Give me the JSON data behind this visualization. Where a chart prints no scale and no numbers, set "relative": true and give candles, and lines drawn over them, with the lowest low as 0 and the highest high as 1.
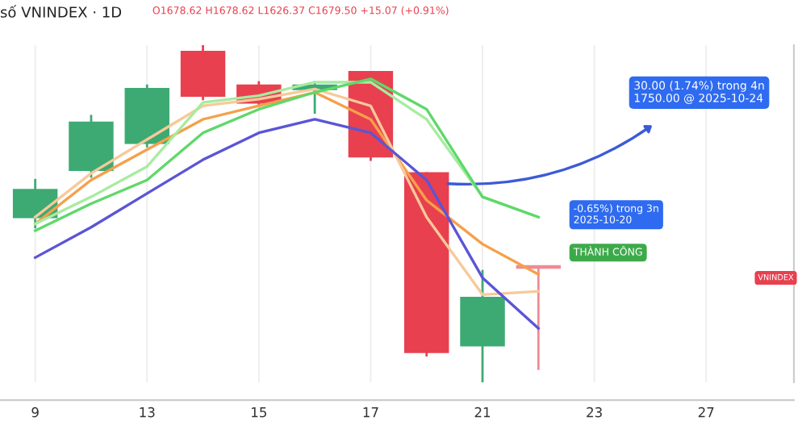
{
  "chart_data": {
    "type": "candlestick",
    "title": "số VNINDEX · 1D",
    "subtitle": "O1678.62 H1678.62 L1626.37 C1679.50 +15.07 (+0.91%)",
    "relative": true,
    "grid": true,
    "legend": false,
    "categories": [
      "9",
      null,
      "13",
      null,
      "15",
      null,
      "17",
      null,
      "21",
      null,
      "23",
      null,
      "27",
      null
    ],
    "ohlc": [
      [
        0.49,
        0.6,
        0.46,
        0.57
      ],
      [
        0.63,
        0.79,
        0.61,
        0.77
      ],
      [
        0.71,
        0.88,
        0.7,
        0.87
      ],
      [
        0.98,
        1.0,
        0.84,
        0.85
      ],
      [
        0.88,
        0.89,
        0.82,
        0.83
      ],
      [
        0.87,
        0.89,
        0.8,
        0.88
      ],
      [
        0.92,
        0.92,
        0.66,
        0.67
      ],
      [
        0.62,
        0.62,
        0.08,
        0.09
      ],
      [
        0.11,
        0.33,
        0.0,
        0.25
      ],
      [
        0.34,
        0.34,
        0.04,
        0.34
      ],
      null,
      null,
      null,
      null
    ],
    "colors": [
      "#3daa73",
      "#3daa73",
      "#3daa73",
      "#e8404f",
      "#e8404f",
      "#3daa73",
      "#e8404f",
      "#e8404f",
      "#3daa73",
      "#f08a95",
      null,
      null,
      null,
      null
    ],
    "series": [
      {
        "type": "line",
        "color": "#f5a04a",
        "values": [
          0.47,
          0.6,
          0.69,
          0.78,
          0.82,
          0.86,
          0.78,
          0.54,
          0.41,
          0.32,
          null,
          null,
          null,
          null
        ]
      },
      {
        "type": "line",
        "color": "#f7c99a",
        "values": [
          0.49,
          0.62,
          0.72,
          0.82,
          0.84,
          0.87,
          0.82,
          0.49,
          0.26,
          0.27,
          null,
          null,
          null,
          null
        ]
      },
      {
        "type": "line",
        "color": "#a8eba0",
        "values": [
          0.47,
          0.55,
          0.64,
          0.83,
          0.85,
          0.89,
          0.89,
          0.78,
          0.55,
          0.49,
          null,
          null,
          null,
          null
        ]
      },
      {
        "type": "line",
        "color": "#5fd86a",
        "values": [
          0.45,
          0.53,
          0.6,
          0.74,
          0.81,
          0.86,
          0.9,
          0.81,
          0.55,
          0.49,
          null,
          null,
          null,
          null
        ]
      },
      {
        "type": "line",
        "color": "#5b55d6",
        "values": [
          0.37,
          0.46,
          0.56,
          0.66,
          0.74,
          0.78,
          0.74,
          0.6,
          0.31,
          0.16,
          null,
          null,
          null,
          null
        ]
      }
    ],
    "annotations": [
      "30.00 (1.74%) trong 4n\n1750.00 @ 2025-10-24",
      "-0.65%) trong 3n\n2025-10-20",
      "THÀNH CÔNG",
      "VNINDEX"
    ]
  }
}
